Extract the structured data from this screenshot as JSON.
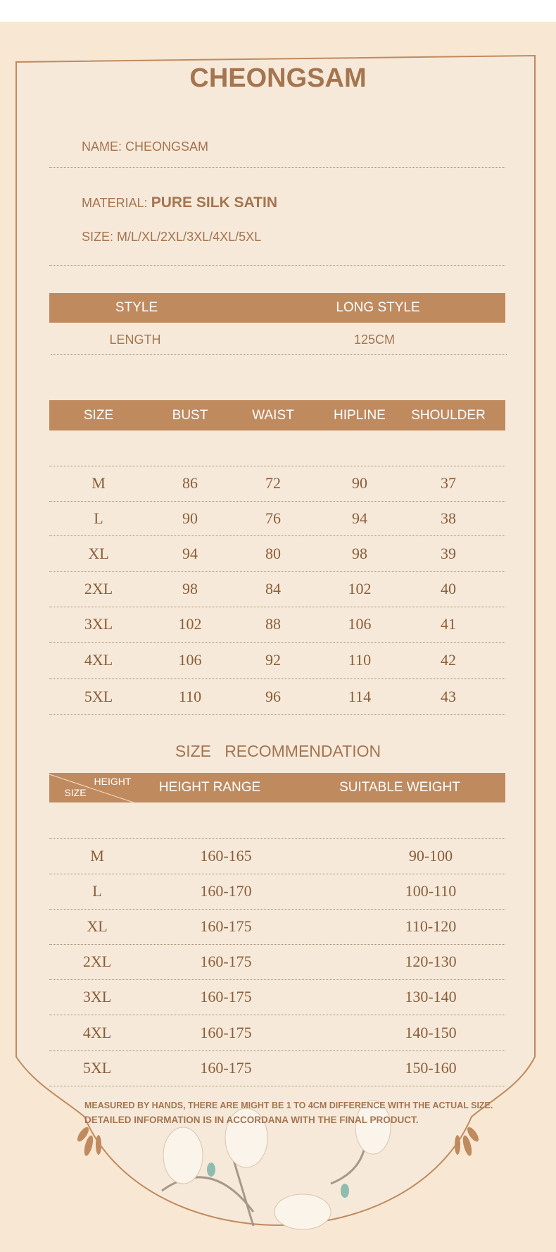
{
  "title": "CHEONGSAM",
  "info": {
    "name": "NAME: CHEONGSAM",
    "material_label": "MATERIAL:",
    "material_value": "PURE SILK SATIN",
    "size": "SIZE: M/L/XL/2XL/3XL/4XL/5XL"
  },
  "style_table": {
    "style_label": "STYLE",
    "style_value": "LONG STYLE",
    "length_label": "LENGTH",
    "length_value": "125CM"
  },
  "size_table": {
    "headers": [
      "SIZE",
      "BUST",
      "WAIST",
      "HIPLINE",
      "SHOULDER"
    ],
    "rows": [
      [
        "M",
        "86",
        "72",
        "90",
        "37"
      ],
      [
        "L",
        "90",
        "76",
        "94",
        "38"
      ],
      [
        "XL",
        "94",
        "80",
        "98",
        "39"
      ],
      [
        "2XL",
        "98",
        "84",
        "102",
        "40"
      ],
      [
        "3XL",
        "102",
        "88",
        "106",
        "41"
      ],
      [
        "4XL",
        "106",
        "92",
        "110",
        "42"
      ],
      [
        "5XL",
        "110",
        "96",
        "114",
        "43"
      ]
    ]
  },
  "recommendation": {
    "title": "SIZE   RECOMMENDATION",
    "corner_top": "HEIGHT",
    "corner_bottom": "SIZE",
    "headers": [
      "HEIGHT RANGE",
      "SUITABLE WEIGHT"
    ],
    "rows": [
      [
        "M",
        "160-165",
        "90-100"
      ],
      [
        "L",
        "160-170",
        "100-110"
      ],
      [
        "XL",
        "160-175",
        "110-120"
      ],
      [
        "2XL",
        "160-175",
        "120-130"
      ],
      [
        "3XL",
        "160-175",
        "130-140"
      ],
      [
        "4XL",
        "160-175",
        "140-150"
      ],
      [
        "5XL",
        "160-175",
        "150-160"
      ]
    ]
  },
  "notes": [
    "MEASURED BY HANDS, THERE ARE MIGHT BE 1 TO 4CM DIFFERENCE WITH THE ACTUAL SIZE.",
    "DETAILED INFORMATION IS IN ACCORDANA WITH THE FINAL PRODUCT."
  ],
  "colors": {
    "accent": "#c08a5f",
    "text": "#a47550",
    "background": "#f7e7d3"
  }
}
